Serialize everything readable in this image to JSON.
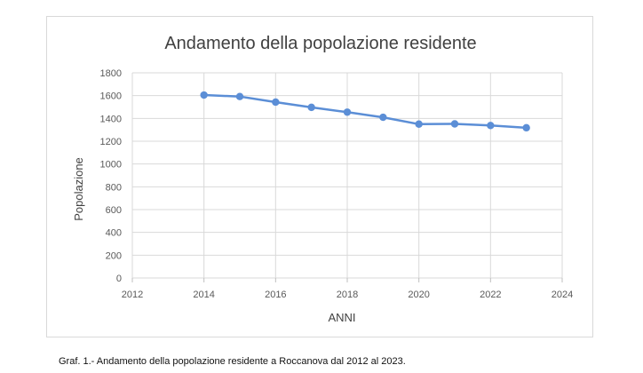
{
  "chart_data": {
    "type": "scatter",
    "connected": true,
    "title": "Andamento della popolazione residente",
    "xlabel": "ANNI",
    "ylabel": "Popolazione",
    "xlim": [
      2012,
      2024
    ],
    "ylim": [
      0,
      1800
    ],
    "xticks": [
      2012,
      2014,
      2016,
      2018,
      2020,
      2022,
      2024
    ],
    "yticks": [
      0,
      200,
      400,
      600,
      800,
      1000,
      1200,
      1400,
      1600,
      1800
    ],
    "grid": true,
    "legend": "none",
    "series": [
      {
        "name": "Popolazione residente",
        "color": "#5b8ed6",
        "x": [
          2014,
          2015,
          2016,
          2017,
          2018,
          2019,
          2020,
          2021,
          2022,
          2023
        ],
        "y": [
          1605,
          1592,
          1543,
          1497,
          1455,
          1410,
          1350,
          1352,
          1338,
          1318
        ]
      }
    ]
  },
  "caption": "Graf. 1.- Andamento della popolazione residente a Roccanova dal 2012 al 2023."
}
